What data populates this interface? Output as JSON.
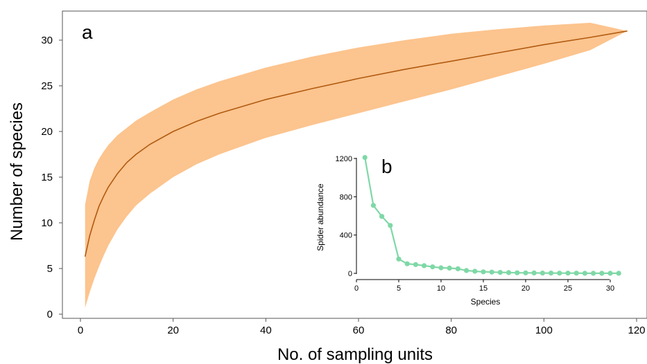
{
  "chart_data": [
    {
      "panel": "a",
      "type": "area",
      "xlabel": "No. of sampling units",
      "ylabel": "Number of species",
      "xlim": [
        0,
        120
      ],
      "ylim": [
        0,
        33
      ],
      "xticks": [
        0,
        20,
        40,
        60,
        80,
        100,
        120
      ],
      "yticks": [
        0,
        5,
        10,
        15,
        20,
        25,
        30
      ],
      "grid": false,
      "colors": {
        "band": "#fcc48e",
        "line": "#b05a10"
      },
      "series": [
        {
          "kind": "line",
          "x": [
            1,
            2,
            3,
            4,
            5,
            6,
            8,
            10,
            12,
            15,
            20,
            25,
            30,
            40,
            50,
            60,
            70,
            80,
            90,
            100,
            110,
            118
          ],
          "y": [
            6.3,
            8.6,
            10.3,
            11.8,
            12.9,
            13.9,
            15.4,
            16.6,
            17.5,
            18.6,
            20.0,
            21.1,
            22.0,
            23.5,
            24.7,
            25.8,
            26.8,
            27.7,
            28.6,
            29.5,
            30.3,
            31.0
          ]
        },
        {
          "kind": "band",
          "x": [
            1,
            2,
            3,
            4,
            5,
            6,
            8,
            10,
            12,
            15,
            20,
            25,
            30,
            40,
            50,
            60,
            70,
            80,
            90,
            100,
            110,
            118
          ],
          "lower": [
            0.7,
            2.4,
            3.9,
            5.2,
            6.4,
            7.5,
            9.3,
            10.7,
            11.9,
            13.2,
            15.0,
            16.4,
            17.5,
            19.3,
            20.7,
            22.0,
            23.3,
            24.6,
            26.0,
            27.4,
            28.9,
            31.0
          ],
          "upper": [
            12.0,
            14.6,
            16.0,
            17.0,
            17.8,
            18.5,
            19.6,
            20.4,
            21.2,
            22.1,
            23.5,
            24.6,
            25.5,
            27.0,
            28.2,
            29.2,
            30.0,
            30.7,
            31.2,
            31.6,
            31.9,
            31.0
          ]
        }
      ]
    },
    {
      "panel": "b",
      "type": "line",
      "xlabel": "Species",
      "ylabel": "Spider abundance",
      "xlim": [
        0,
        31
      ],
      "ylim": [
        0,
        1200
      ],
      "xticks": [
        0,
        5,
        10,
        15,
        20,
        25,
        30
      ],
      "yticks": [
        0,
        400,
        800,
        1200
      ],
      "grid": false,
      "colors": {
        "line": "#7fd8a6"
      },
      "x": [
        1,
        2,
        3,
        4,
        5,
        6,
        7,
        8,
        9,
        10,
        11,
        12,
        13,
        14,
        15,
        16,
        17,
        18,
        19,
        20,
        21,
        22,
        23,
        24,
        25,
        26,
        27,
        28,
        29,
        30,
        31
      ],
      "values": [
        1210,
        710,
        595,
        500,
        150,
        100,
        92,
        80,
        68,
        58,
        55,
        48,
        30,
        22,
        16,
        13,
        10,
        8,
        6,
        5,
        4,
        3,
        3,
        2,
        2,
        2,
        1,
        1,
        1,
        1,
        1
      ]
    }
  ]
}
